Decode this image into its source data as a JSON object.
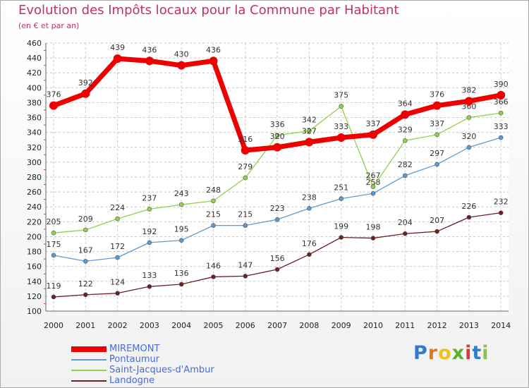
{
  "title": "Evolution des Impôts locaux pour la Commune par Habitant",
  "subtitle": "(en € et par an)",
  "logo_text": "Proxiti",
  "chart_data": {
    "type": "line",
    "x": [
      "2000",
      "2001",
      "2002",
      "2003",
      "2004",
      "2005",
      "2006",
      "2007",
      "2008",
      "2009",
      "2010",
      "2011",
      "2012",
      "2013",
      "2014"
    ],
    "ylim": [
      100,
      460
    ],
    "ytick_step": 20,
    "grid": true,
    "legend_position": "bottom-left",
    "series": [
      {
        "name": "MIREMONT",
        "color": "#ee0000",
        "values": [
          376,
          392,
          439,
          436,
          430,
          436,
          316,
          320,
          327,
          333,
          337,
          364,
          376,
          382,
          390
        ]
      },
      {
        "name": "Pontaumur",
        "color": "#5b9bd5",
        "values": [
          175,
          167,
          172,
          192,
          195,
          215,
          215,
          223,
          238,
          251,
          258,
          282,
          297,
          320,
          333
        ]
      },
      {
        "name": "Saint-Jacques-d'Ambur",
        "color": "#8fd24a",
        "values": [
          205,
          209,
          224,
          237,
          243,
          248,
          279,
          336,
          342,
          375,
          267,
          329,
          337,
          360,
          366
        ]
      },
      {
        "name": "Landogne",
        "color": "#6b1f25",
        "values": [
          119,
          122,
          124,
          133,
          136,
          146,
          147,
          156,
          176,
          199,
          198,
          204,
          207,
          226,
          232
        ]
      }
    ]
  }
}
